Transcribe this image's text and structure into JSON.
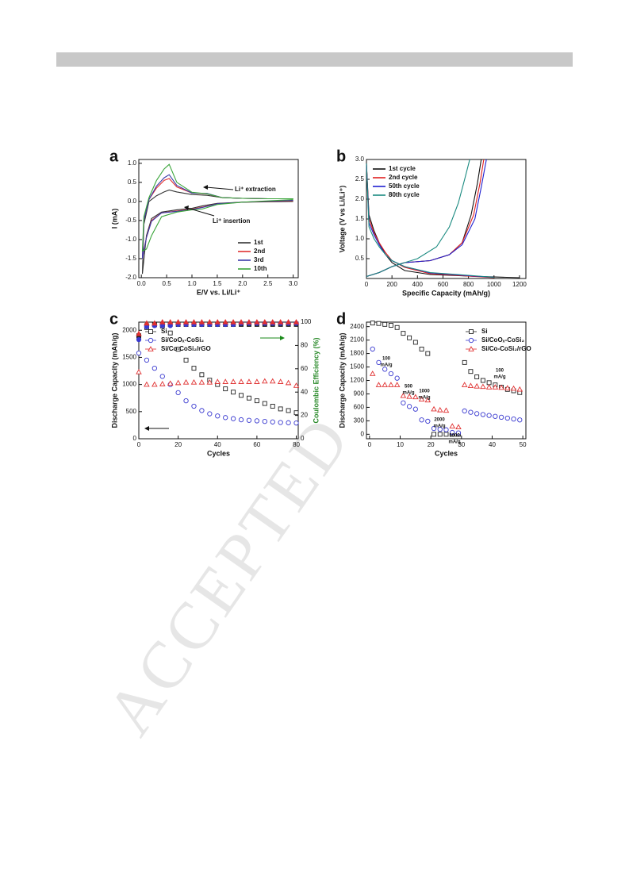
{
  "watermark": "ACCEPTED",
  "chart_data": [
    {
      "type": "line",
      "label": "a",
      "xlabel": "E/V vs. Li/Li⁺",
      "ylabel": "I (mA)",
      "xlim": [
        -0.05,
        3.1
      ],
      "ylim": [
        -2.0,
        1.1
      ],
      "xticks": [
        {
          "value": 0,
          "label": "0.0"
        },
        0.5,
        {
          "value": 1,
          "label": "1.0"
        },
        1.5,
        {
          "value": 2,
          "label": "2.0"
        },
        2.5,
        {
          "value": 3,
          "label": "3.0"
        }
      ],
      "yticks": [
        {
          "value": -2,
          "label": "-2.0"
        },
        -1.5,
        {
          "value": -1,
          "label": "-1.0"
        },
        -0.5,
        {
          "value": 0,
          "label": "0.0"
        },
        0.5,
        {
          "value": 1,
          "label": "1.0"
        }
      ],
      "legend": "lower right",
      "annotations": [
        "Li⁺ extraction",
        "Li⁺ insertion"
      ],
      "series": [
        {
          "name": "1st",
          "color": "#333333",
          "x": [
            3.0,
            2.0,
            1.5,
            1.2,
            1.0,
            0.7,
            0.4,
            0.2,
            0.1,
            0.02,
            0.05,
            0.15,
            0.3,
            0.45,
            0.55,
            0.7,
            1.0,
            1.3,
            1.6,
            2.0,
            2.5,
            3.0
          ],
          "values": [
            0.0,
            -0.02,
            -0.05,
            -0.12,
            -0.18,
            -0.22,
            -0.28,
            -0.45,
            -0.9,
            -1.9,
            -0.6,
            0.0,
            0.15,
            0.25,
            0.3,
            0.25,
            0.18,
            0.16,
            0.1,
            0.08,
            0.07,
            0.07
          ]
        },
        {
          "name": "2nd",
          "color": "#e03030",
          "x": [
            3.0,
            2.0,
            1.5,
            1.2,
            1.0,
            0.7,
            0.4,
            0.2,
            0.1,
            0.02,
            0.05,
            0.15,
            0.3,
            0.45,
            0.55,
            0.7,
            1.0,
            1.3,
            1.6,
            2.0,
            2.5,
            3.0
          ],
          "values": [
            0.02,
            -0.02,
            -0.06,
            -0.15,
            -0.2,
            -0.25,
            -0.3,
            -0.5,
            -0.95,
            -1.5,
            -0.5,
            0.05,
            0.35,
            0.55,
            0.6,
            0.38,
            0.22,
            0.2,
            0.1,
            0.08,
            0.07,
            0.07
          ]
        },
        {
          "name": "3rd",
          "color": "#3a3aa8",
          "x": [
            3.0,
            2.0,
            1.5,
            1.2,
            1.0,
            0.7,
            0.4,
            0.2,
            0.1,
            0.02,
            0.05,
            0.15,
            0.3,
            0.45,
            0.55,
            0.7,
            1.0,
            1.3,
            1.6,
            2.0,
            2.5,
            3.0
          ],
          "values": [
            0.03,
            -0.02,
            -0.06,
            -0.16,
            -0.21,
            -0.26,
            -0.3,
            -0.52,
            -0.95,
            -1.5,
            -0.5,
            0.05,
            0.4,
            0.62,
            0.7,
            0.42,
            0.22,
            0.21,
            0.1,
            0.08,
            0.07,
            0.07
          ]
        },
        {
          "name": "10th",
          "color": "#3aa53a",
          "x": [
            3.0,
            2.0,
            1.5,
            1.2,
            1.0,
            0.7,
            0.4,
            0.2,
            0.1,
            0.02,
            0.05,
            0.15,
            0.3,
            0.45,
            0.55,
            0.7,
            1.0,
            1.3,
            1.6,
            2.0,
            2.5,
            3.0
          ],
          "values": [
            0.05,
            -0.02,
            -0.08,
            -0.2,
            -0.22,
            -0.28,
            -0.4,
            -0.9,
            -1.25,
            -1.3,
            -0.4,
            0.1,
            0.55,
            0.85,
            0.97,
            0.5,
            0.24,
            0.2,
            0.1,
            0.08,
            0.07,
            0.07
          ]
        }
      ]
    },
    {
      "type": "line",
      "label": "b",
      "xlabel": "Specific Capacity (mAh/g)",
      "ylabel": "Voltage (V vs Li/Li⁺)",
      "xlim": [
        0,
        1250
      ],
      "ylim": [
        0,
        3.0
      ],
      "xticks": [
        0,
        200,
        400,
        600,
        800,
        1000,
        1200
      ],
      "yticks": [
        0.5,
        {
          "value": 1,
          "label": "1.0"
        },
        1.5,
        {
          "value": 2,
          "label": "2.0"
        },
        2.5,
        {
          "value": 3,
          "label": "3.0"
        }
      ],
      "legend": "upper left",
      "series": [
        {
          "name": "1st cycle",
          "color": "#111111",
          "x": [
            0,
            20,
            60,
            100,
            150,
            200,
            300,
            500,
            800,
            1200,
            null,
            0,
            100,
            200,
            300,
            500,
            650,
            750,
            820,
            870,
            900
          ],
          "values": [
            2.9,
            1.6,
            1.2,
            0.9,
            0.6,
            0.4,
            0.2,
            0.1,
            0.06,
            0.02,
            null,
            0.05,
            0.15,
            0.3,
            0.4,
            0.45,
            0.6,
            0.9,
            1.6,
            2.4,
            3.0
          ]
        },
        {
          "name": "2nd cycle",
          "color": "#e02020",
          "x": [
            0,
            20,
            60,
            100,
            150,
            200,
            300,
            500,
            800,
            1000,
            null,
            0,
            100,
            200,
            300,
            500,
            650,
            750,
            840,
            890,
            920
          ],
          "values": [
            2.9,
            1.5,
            1.15,
            0.9,
            0.65,
            0.45,
            0.28,
            0.12,
            0.06,
            0.02,
            null,
            0.05,
            0.15,
            0.3,
            0.4,
            0.45,
            0.6,
            0.9,
            1.6,
            2.4,
            3.0
          ]
        },
        {
          "name": "50th cycle",
          "color": "#2020d0",
          "x": [
            0,
            20,
            60,
            100,
            150,
            200,
            300,
            500,
            800,
            1000,
            null,
            0,
            100,
            200,
            300,
            500,
            650,
            750,
            850,
            900,
            940
          ],
          "values": [
            2.9,
            1.4,
            1.1,
            0.85,
            0.6,
            0.45,
            0.3,
            0.14,
            0.07,
            0.03,
            null,
            0.05,
            0.15,
            0.3,
            0.4,
            0.45,
            0.6,
            0.85,
            1.5,
            2.3,
            3.0
          ]
        },
        {
          "name": "80th cycle",
          "color": "#1a8a80",
          "x": [
            0,
            20,
            60,
            100,
            150,
            200,
            300,
            500,
            800,
            1000,
            null,
            0,
            100,
            200,
            300,
            400,
            550,
            650,
            720,
            770,
            810
          ],
          "values": [
            2.9,
            1.3,
            1.0,
            0.8,
            0.6,
            0.45,
            0.3,
            0.15,
            0.08,
            0.03,
            null,
            0.05,
            0.15,
            0.3,
            0.4,
            0.5,
            0.8,
            1.3,
            1.9,
            2.5,
            3.0
          ]
        }
      ]
    },
    {
      "type": "scatter",
      "label": "c",
      "xlabel": "Cycles",
      "ylabel": "Discharge Capacity (mAh/g)",
      "y2label": "Coulombic Efficiency (%)",
      "y2color": "#2a8a2a",
      "xlim": [
        0,
        81
      ],
      "ylim": [
        0,
        2150
      ],
      "y2lim": [
        0,
        100
      ],
      "xticks": [
        0,
        20,
        40,
        60,
        80
      ],
      "yticks": [
        0,
        500,
        1000,
        1500,
        2000
      ],
      "y2ticks": [
        0,
        20,
        40,
        60,
        80,
        100
      ],
      "legend": "upper left",
      "x": [
        0,
        4,
        8,
        12,
        16,
        20,
        24,
        28,
        32,
        36,
        40,
        44,
        48,
        52,
        56,
        60,
        64,
        68,
        72,
        76,
        80
      ],
      "series": [
        {
          "name": "Si",
          "color": "#222222",
          "marker": "square",
          "values": [
            1900,
            2050,
            2100,
            2080,
            1950,
            1650,
            1450,
            1300,
            1180,
            1080,
            1000,
            920,
            860,
            800,
            750,
            700,
            650,
            600,
            550,
            520,
            480
          ]
        },
        {
          "name": "Si/CoOₓ-CoSi₂",
          "color": "#3a3ad0",
          "marker": "circle",
          "values": [
            1580,
            1450,
            1300,
            1150,
            1000,
            850,
            700,
            600,
            520,
            460,
            420,
            390,
            370,
            350,
            340,
            330,
            320,
            310,
            300,
            295,
            290
          ]
        },
        {
          "name": "Si/Co-CoSi₂/rGO",
          "color": "#e03030",
          "marker": "triangle",
          "values": [
            1230,
            1000,
            1000,
            1010,
            1020,
            1030,
            1040,
            1040,
            1040,
            1040,
            1050,
            1050,
            1050,
            1050,
            1050,
            1050,
            1060,
            1060,
            1050,
            1030,
            980
          ]
        },
        {
          "color": "#222222",
          "marker": "square",
          "axis": "y2",
          "values": [
            88,
            97,
            98,
            98,
            98,
            98,
            98,
            98,
            98,
            98,
            98,
            98,
            98,
            98,
            98,
            98,
            98,
            98,
            98,
            98,
            98
          ]
        },
        {
          "color": "#3a3ad0",
          "marker": "circle",
          "axis": "y2",
          "values": [
            85,
            96,
            97,
            97,
            97,
            98,
            98,
            98,
            98,
            98,
            98,
            98,
            98,
            99,
            99,
            99,
            99,
            99,
            99,
            99,
            99
          ]
        },
        {
          "color": "#e03030",
          "marker": "triangle",
          "axis": "y2",
          "values": [
            90,
            99,
            99,
            100,
            100,
            100,
            100,
            100,
            100,
            100,
            100,
            100,
            100,
            100,
            100,
            100,
            100,
            100,
            100,
            100,
            100
          ]
        }
      ]
    },
    {
      "type": "scatter",
      "label": "d",
      "xlabel": "Cycles",
      "ylabel": "Discharge Capacity (mAh/g)",
      "xlim": [
        -1,
        51
      ],
      "ylim": [
        -100,
        2500
      ],
      "xticks": [
        0,
        10,
        20,
        30,
        40,
        50
      ],
      "yticks": [
        0,
        300,
        600,
        900,
        1200,
        1500,
        1800,
        2100,
        2400
      ],
      "legend": "upper right",
      "annotations": [
        [
          "100",
          "mA/g"
        ],
        [
          "500",
          "mA/g"
        ],
        [
          "1000",
          "mA/g"
        ],
        [
          "2000",
          "mA/g"
        ],
        [
          "5000",
          "mA/g"
        ],
        [
          "100",
          "mA/g"
        ]
      ],
      "x": [
        1,
        3,
        5,
        7,
        9,
        11,
        13,
        15,
        17,
        19,
        21,
        23,
        25,
        27,
        29,
        31,
        33,
        35,
        37,
        39,
        41,
        43,
        45,
        47,
        49
      ],
      "series": [
        {
          "name": "Si",
          "color": "#222222",
          "marker": "square",
          "values": [
            2480,
            2470,
            2450,
            2430,
            2380,
            2250,
            2150,
            2050,
            1900,
            1800,
            0,
            0,
            0,
            0,
            0,
            1600,
            1400,
            1280,
            1200,
            1150,
            1100,
            1050,
            1000,
            970,
            930
          ]
        },
        {
          "name": "Si/CoOₓ-CoSi₂",
          "color": "#3a3ad0",
          "marker": "circle",
          "values": [
            1900,
            1600,
            1450,
            1350,
            1250,
            700,
            620,
            560,
            320,
            290,
            130,
            110,
            100,
            40,
            30,
            520,
            490,
            460,
            440,
            420,
            400,
            380,
            360,
            340,
            320
          ]
        },
        {
          "name": "Si/Co-CoSi₂/rGO",
          "color": "#e03030",
          "marker": "triangle",
          "values": [
            1350,
            1100,
            1100,
            1100,
            1100,
            860,
            840,
            830,
            780,
            760,
            560,
            540,
            530,
            180,
            160,
            1100,
            1080,
            1070,
            1060,
            1050,
            1050,
            1040,
            1030,
            1020,
            1000
          ]
        }
      ]
    }
  ]
}
